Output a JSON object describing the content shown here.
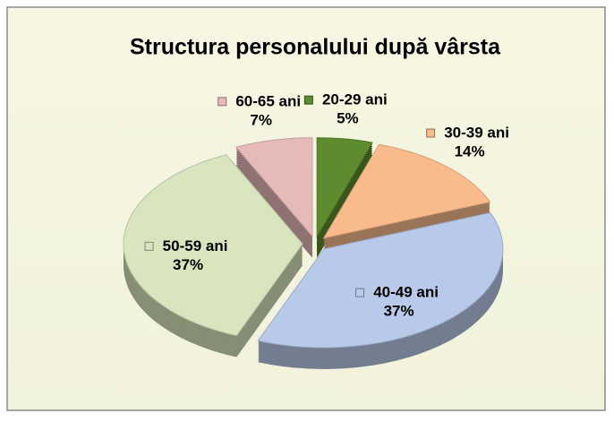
{
  "chart_data": {
    "type": "pie3d",
    "title": "Structura personalului după vârsta",
    "categories": [
      "20-29 ani",
      "30-39 ani",
      "40-49 ani",
      "50-59 ani",
      "60-65 ani"
    ],
    "values": [
      5,
      14,
      37,
      37,
      7
    ],
    "value_labels": [
      "5%",
      "14%",
      "37%",
      "37%",
      "7%"
    ],
    "colors": [
      "#5f8b2f",
      "#f9bb8c",
      "#b9c9e9",
      "#d8e5be",
      "#e7baba"
    ]
  }
}
